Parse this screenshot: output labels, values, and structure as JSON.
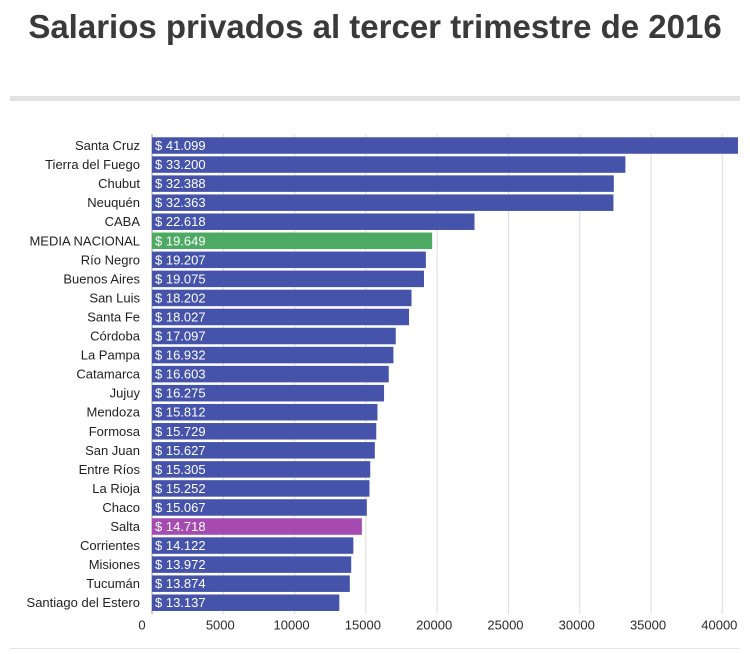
{
  "title": "Salarios privados al tercer trimestre de 2016",
  "chart_data": {
    "type": "bar",
    "orientation": "horizontal",
    "title": "Salarios privados al tercer trimestre de 2016",
    "categories": [
      "Santa Cruz",
      "Tierra del Fuego",
      "Chubut",
      "Neuquén",
      "CABA",
      "MEDIA NACIONAL",
      "Río Negro",
      "Buenos Aires",
      "San Luis",
      "Santa Fe",
      "Córdoba",
      "La Pampa",
      "Catamarca",
      "Jujuy",
      "Mendoza",
      "Formosa",
      "San Juan",
      "Entre Ríos",
      "La Rioja",
      "Chaco",
      "Salta",
      "Corrientes",
      "Misiones",
      "Tucumán",
      "Santiago del Estero"
    ],
    "values": [
      41099,
      33200,
      32388,
      32363,
      22618,
      19649,
      19207,
      19075,
      18202,
      18027,
      17097,
      16932,
      16603,
      16275,
      15812,
      15729,
      15627,
      15305,
      15252,
      15067,
      14718,
      14122,
      13972,
      13874,
      13137
    ],
    "value_labels": [
      "$ 41.099",
      "$ 33.200",
      "$ 32.388",
      "$ 32.363",
      "$ 22.618",
      "$ 19.649",
      "$ 19.207",
      "$ 19.075",
      "$ 18.202",
      "$ 18.027",
      "$ 17.097",
      "$ 16.932",
      "$ 16.603",
      "$ 16.275",
      "$ 15.812",
      "$ 15.729",
      "$ 15.627",
      "$ 15.305",
      "$ 15.252",
      "$ 15.067",
      "$ 14.718",
      "$ 14.122",
      "$ 13.972",
      "$ 13.874",
      "$ 13.137"
    ],
    "xticks": [
      0,
      5000,
      10000,
      15000,
      20000,
      25000,
      30000,
      35000,
      40000
    ],
    "xlim": [
      0,
      41099
    ],
    "grid": true,
    "colors": {
      "default": "#4553aa",
      "highlight": {
        "MEDIA NACIONAL": "#4caa62",
        "Salta": "#a44ab0"
      }
    }
  }
}
